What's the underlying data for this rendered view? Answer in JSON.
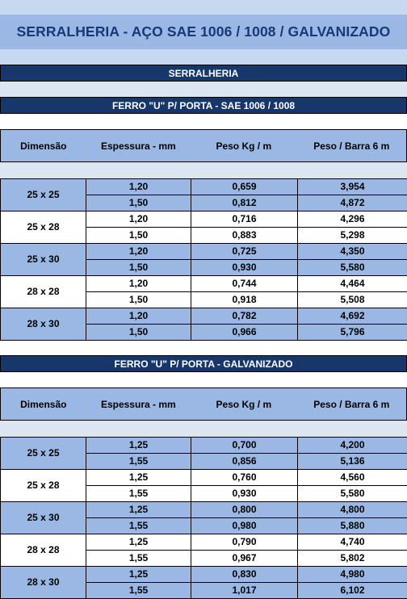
{
  "title": "SERRALHERIA - AÇO SAE 1006 / 1008 / GALVANIZADO",
  "section_title": "SERRALHERIA",
  "headers": [
    "Dimensão",
    "Espessura - mm",
    "Peso Kg / m",
    "Peso / Barra 6 m"
  ],
  "tables": [
    {
      "title": "FERRO \"U\" P/ PORTA - SAE 1006 / 1008",
      "groups": [
        {
          "dim": "25 x 25",
          "rows": [
            [
              "1,20",
              "0,659",
              "3,954"
            ],
            [
              "1,50",
              "0,812",
              "4,872"
            ]
          ]
        },
        {
          "dim": "25 x 28",
          "rows": [
            [
              "1,20",
              "0,716",
              "4,296"
            ],
            [
              "1,50",
              "0,883",
              "5,298"
            ]
          ]
        },
        {
          "dim": "25 x 30",
          "rows": [
            [
              "1,20",
              "0,725",
              "4,350"
            ],
            [
              "1,50",
              "0,930",
              "5,580"
            ]
          ]
        },
        {
          "dim": "28 x 28",
          "rows": [
            [
              "1,20",
              "0,744",
              "4,464"
            ],
            [
              "1,50",
              "0,918",
              "5,508"
            ]
          ]
        },
        {
          "dim": "28 x 30",
          "rows": [
            [
              "1,20",
              "0,782",
              "4,692"
            ],
            [
              "1,50",
              "0,966",
              "5,796"
            ]
          ]
        }
      ]
    },
    {
      "title": "FERRO \"U\" P/ PORTA - GALVANIZADO",
      "groups": [
        {
          "dim": "25 x 25",
          "rows": [
            [
              "1,25",
              "0,700",
              "4,200"
            ],
            [
              "1,55",
              "0,856",
              "5,136"
            ]
          ]
        },
        {
          "dim": "25 x 28",
          "rows": [
            [
              "1,25",
              "0,760",
              "4,560"
            ],
            [
              "1,55",
              "0,930",
              "5,580"
            ]
          ]
        },
        {
          "dim": "25 x 30",
          "rows": [
            [
              "1,25",
              "0,800",
              "4,800"
            ],
            [
              "1,55",
              "0,980",
              "5,880"
            ]
          ]
        },
        {
          "dim": "28 x 28",
          "rows": [
            [
              "1,25",
              "0,790",
              "4,740"
            ],
            [
              "1,55",
              "0,967",
              "5,802"
            ]
          ]
        },
        {
          "dim": "28 x 30",
          "rows": [
            [
              "1,25",
              "0,830",
              "4,980"
            ],
            [
              "1,55",
              "1,017",
              "6,102"
            ]
          ]
        }
      ]
    }
  ],
  "colors": {
    "title_text": "#17397a",
    "bar_bg": "#17376b",
    "header_bg": "#9ab8e3",
    "band_bg": "#c6d9f0"
  }
}
